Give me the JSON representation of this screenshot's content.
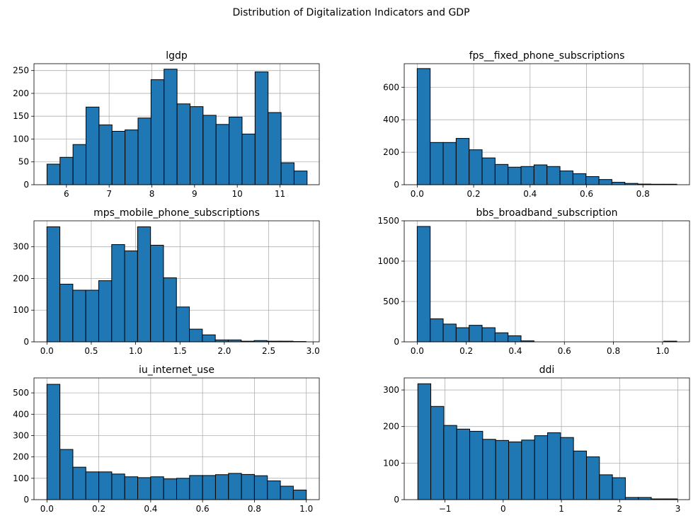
{
  "figure": {
    "title": "Distribution of Digitalization Indicators and GDP"
  },
  "style": {
    "bar_color": "#1f77b4",
    "edge_color": "#000000",
    "grid_color": "#b0b0b0"
  },
  "chart_data": [
    {
      "type": "bar",
      "title": "lgdp",
      "xlim": [
        5.24,
        11.92
      ],
      "ylim": [
        0,
        265
      ],
      "xticks": [
        6,
        7,
        8,
        9,
        10,
        11
      ],
      "xtick_labels": [
        "6",
        "7",
        "8",
        "9",
        "10",
        "11"
      ],
      "yticks": [
        0,
        50,
        100,
        150,
        200,
        250
      ],
      "bin_start": 5.545,
      "bin_width": 0.3045,
      "values": [
        45,
        60,
        88,
        170,
        131,
        117,
        120,
        146,
        230,
        253,
        177,
        171,
        152,
        132,
        148,
        111,
        247,
        158,
        48,
        30
      ],
      "grid": true
    },
    {
      "type": "bar",
      "title": "fps__fixed_phone_subscriptions",
      "xlim": [
        -0.046,
        0.965
      ],
      "ylim": [
        0,
        745
      ],
      "xticks": [
        0,
        0.2,
        0.4,
        0.6,
        0.8
      ],
      "xtick_labels": [
        "0.0",
        "0.2",
        "0.4",
        "0.6",
        "0.8"
      ],
      "yticks": [
        0,
        200,
        400,
        600
      ],
      "bin_start": 0,
      "bin_width": 0.046,
      "values": [
        715,
        260,
        260,
        285,
        215,
        165,
        125,
        108,
        112,
        122,
        112,
        85,
        68,
        50,
        32,
        15,
        8,
        4,
        3,
        3
      ],
      "grid": true
    },
    {
      "type": "bar",
      "title": "mps_mobile_phone_subscriptions",
      "xlim": [
        -0.146,
        3.07
      ],
      "ylim": [
        0,
        382
      ],
      "xticks": [
        0,
        0.5,
        1,
        1.5,
        2,
        2.5,
        3
      ],
      "xtick_labels": [
        "0.0",
        "0.5",
        "1.0",
        "1.5",
        "2.0",
        "2.5",
        "3.0"
      ],
      "yticks": [
        0,
        100,
        200,
        300
      ],
      "bin_start": 0,
      "bin_width": 0.146,
      "values": [
        363,
        182,
        163,
        163,
        193,
        307,
        287,
        363,
        305,
        202,
        110,
        40,
        22,
        6,
        6,
        2,
        4,
        2,
        2,
        1
      ],
      "grid": true
    },
    {
      "type": "bar",
      "title": "bbs_broadband_subscription",
      "xlim": [
        -0.053,
        1.11
      ],
      "ylim": [
        0,
        1500
      ],
      "xticks": [
        0,
        0.2,
        0.4,
        0.6,
        0.8,
        1
      ],
      "xtick_labels": [
        "0.0",
        "0.2",
        "0.4",
        "0.6",
        "0.8",
        "1.0"
      ],
      "yticks": [
        0,
        500,
        1000,
        1500
      ],
      "bin_start": 0,
      "bin_width": 0.0529,
      "values": [
        1430,
        285,
        220,
        175,
        205,
        175,
        112,
        75,
        12,
        0,
        0,
        0,
        0,
        0,
        0,
        0,
        0,
        0,
        0,
        8
      ],
      "grid": true
    },
    {
      "type": "bar",
      "title": "iu_internet_use",
      "xlim": [
        -0.05,
        1.05
      ],
      "ylim": [
        0,
        570
      ],
      "xticks": [
        0,
        0.2,
        0.4,
        0.6,
        0.8,
        1
      ],
      "xtick_labels": [
        "0.0",
        "0.2",
        "0.4",
        "0.6",
        "0.8",
        "1.0"
      ],
      "yticks": [
        0,
        100,
        200,
        300,
        400,
        500
      ],
      "bin_start": 0,
      "bin_width": 0.05,
      "values": [
        540,
        235,
        152,
        130,
        130,
        120,
        107,
        103,
        107,
        97,
        100,
        113,
        113,
        117,
        123,
        118,
        112,
        88,
        63,
        45
      ],
      "grid": true
    },
    {
      "type": "bar",
      "title": "ddi",
      "xlim": [
        -1.7,
        3.2
      ],
      "ylim": [
        0,
        333
      ],
      "xticks": [
        -1,
        0,
        1,
        2,
        3
      ],
      "xtick_labels": [
        "−1",
        "0",
        "1",
        "2",
        "3"
      ],
      "yticks": [
        0,
        100,
        200,
        300
      ],
      "bin_start": -1.466,
      "bin_width": 0.2228,
      "values": [
        317,
        255,
        203,
        193,
        187,
        165,
        162,
        158,
        163,
        175,
        183,
        170,
        133,
        117,
        68,
        60,
        6,
        6,
        2,
        2
      ],
      "grid": true
    }
  ]
}
